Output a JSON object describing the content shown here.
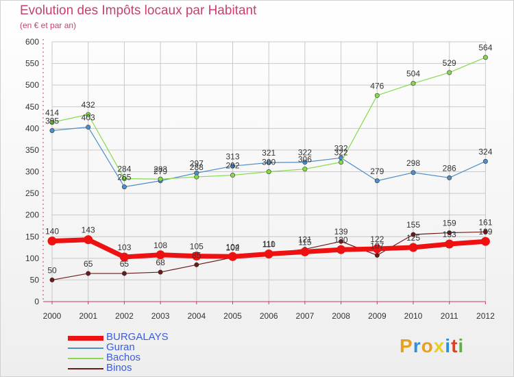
{
  "header": {
    "title": "Evolution des Impôts locaux par Habitant",
    "subtitle": "(en € et par an)"
  },
  "logo": {
    "text": "Proxiti",
    "colors": [
      "#e8a020",
      "#2f8fd8",
      "#e8a020",
      "#e8d020",
      "#2f8fd8",
      "#e04020",
      "#60b040"
    ]
  },
  "colors": {
    "title": "#c9406a",
    "axis": "#cc3366",
    "grid": "#c8c8c8",
    "value_label": "#333333",
    "legend_text": "#3b5bdb"
  },
  "chart_data": {
    "type": "line",
    "title": "Evolution des Impôts locaux par Habitant",
    "subtitle": "(en € et par an)",
    "x": [
      "2000",
      "2001",
      "2002",
      "2003",
      "2004",
      "2005",
      "2006",
      "2007",
      "2008",
      "2009",
      "2010",
      "2011",
      "2012"
    ],
    "ylim": [
      0,
      600
    ],
    "yticks": [
      0,
      50,
      100,
      150,
      200,
      250,
      300,
      350,
      400,
      450,
      500,
      550,
      600
    ],
    "grid": true,
    "legend_position": "bottom-left",
    "series": [
      {
        "name": "BURGALAYS",
        "color": "#ee1111",
        "width": 7,
        "marker": 6.5,
        "values": [
          140,
          143,
          103,
          108,
          105,
          104,
          110,
          115,
          120,
          122,
          125,
          133,
          139
        ]
      },
      {
        "name": "Guran",
        "color": "#4f8ec6",
        "width": 1.2,
        "marker": 3.2,
        "values": [
          395,
          403,
          265,
          279,
          297,
          313,
          321,
          322,
          332,
          279,
          298,
          286,
          324
        ]
      },
      {
        "name": "Bachos",
        "color": "#86d94c",
        "width": 1.2,
        "marker": 3.2,
        "values": [
          414,
          432,
          284,
          283,
          288,
          292,
          300,
          306,
          322,
          476,
          504,
          529,
          564
        ]
      },
      {
        "name": "Binos",
        "color": "#6b1a1a",
        "width": 1.2,
        "marker": 3.2,
        "values": [
          50,
          65,
          65,
          68,
          85,
          102,
          111,
          121,
          139,
          107,
          155,
          159,
          161
        ]
      }
    ]
  }
}
